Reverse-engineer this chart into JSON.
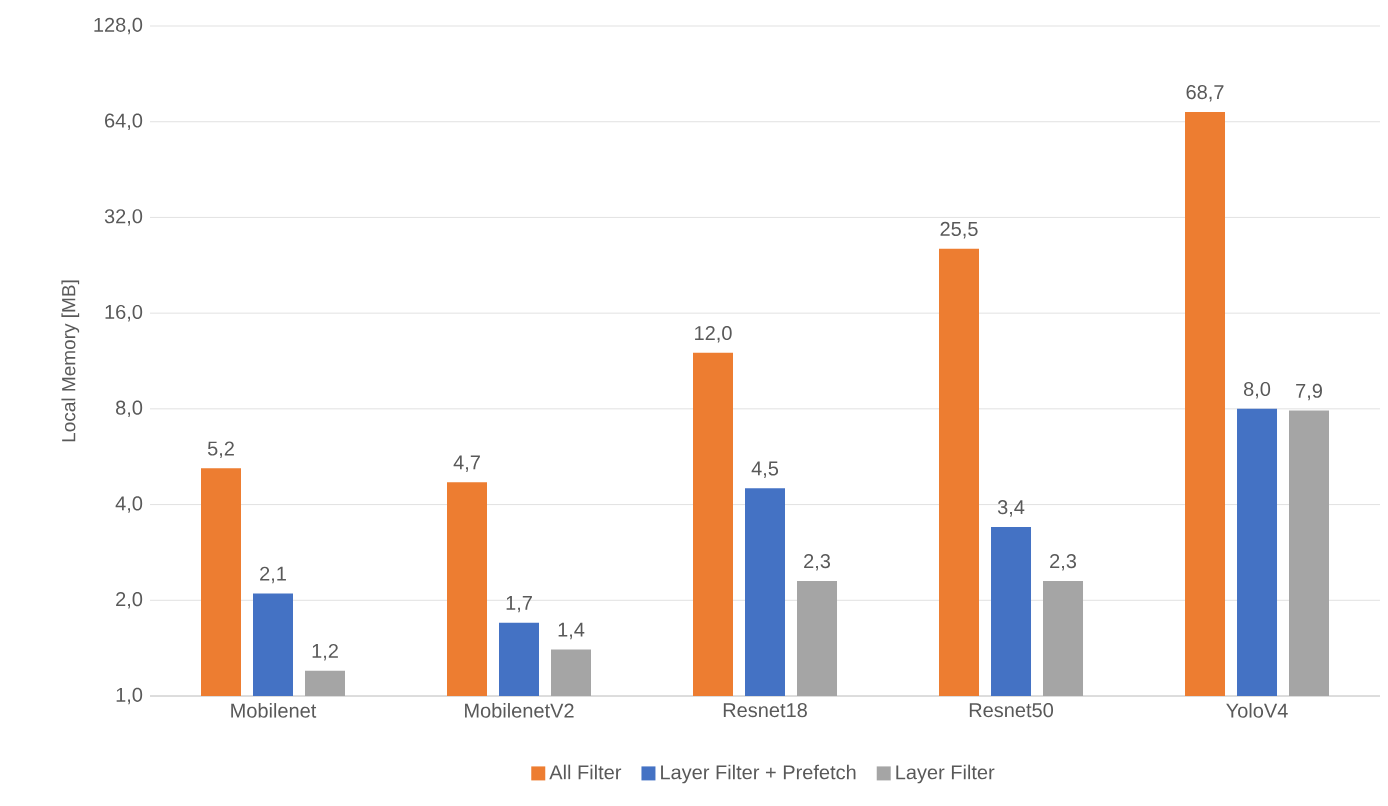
{
  "chart_data": {
    "type": "bar",
    "ylabel": "Local Memory [MB]",
    "log": true,
    "grid": "y",
    "legend": "bottom",
    "categories": [
      "Mobilenet",
      "MobilenetV2",
      "Resnet18",
      "Resnet50",
      "YoloV4"
    ],
    "ylim": [
      1,
      128
    ],
    "yticks": [
      {
        "value": 1,
        "label": "1,0"
      },
      {
        "value": 2,
        "label": "2,0"
      },
      {
        "value": 4,
        "label": "4,0"
      },
      {
        "value": 8,
        "label": "8,0"
      },
      {
        "value": 16,
        "label": "16,0"
      },
      {
        "value": 32,
        "label": "32,0"
      },
      {
        "value": 64,
        "label": "64,0"
      },
      {
        "value": 128,
        "label": "128,0"
      }
    ],
    "series": [
      {
        "name": "All Filter",
        "color": "#ed7d31",
        "values": [
          5.2,
          4.7,
          12.0,
          25.5,
          68.7
        ],
        "value_labels": [
          "5,2",
          "4,7",
          "12,0",
          "25,5",
          "68,7"
        ]
      },
      {
        "name": "Layer Filter + Prefetch",
        "color": "#4472c4",
        "values": [
          2.1,
          1.7,
          4.5,
          3.4,
          8.0
        ],
        "value_labels": [
          "2,1",
          "1,7",
          "4,5",
          "3,4",
          "8,0"
        ]
      },
      {
        "name": "Layer Filter",
        "color": "#a5a5a5",
        "values": [
          1.2,
          1.4,
          2.3,
          2.3,
          7.9
        ],
        "value_labels": [
          "1,2",
          "1,4",
          "2,3",
          "2,3",
          "7,9"
        ]
      }
    ]
  }
}
